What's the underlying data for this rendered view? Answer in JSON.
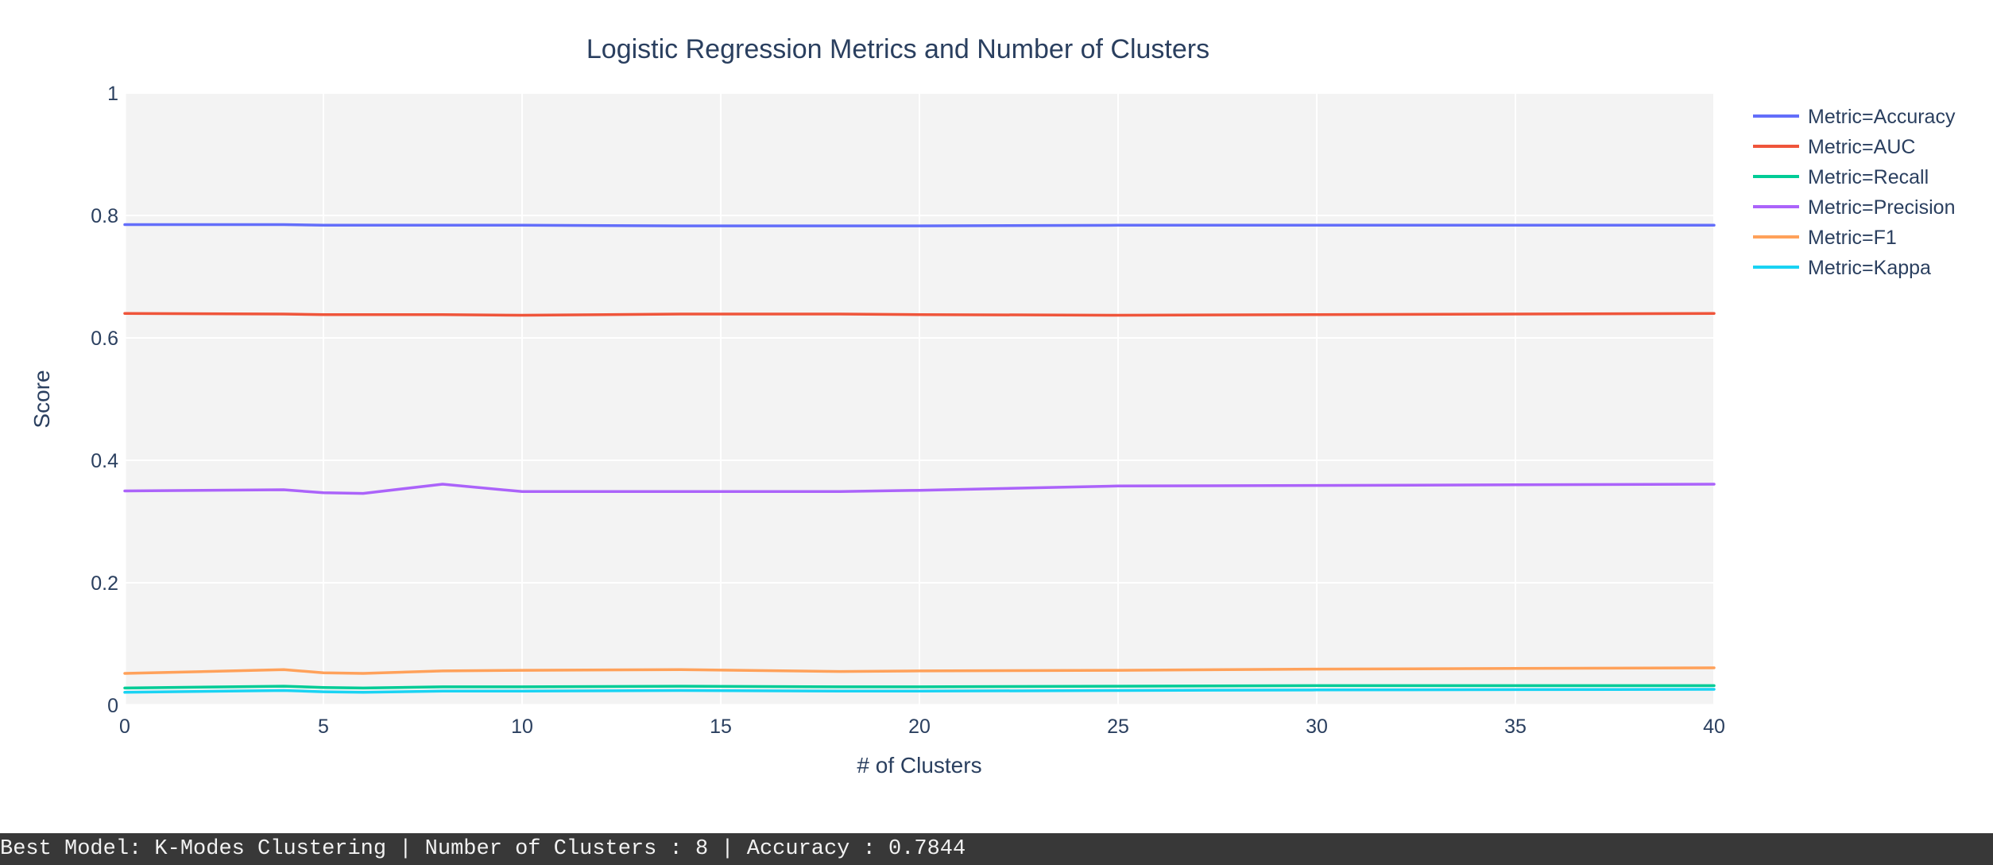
{
  "chart_data": {
    "type": "line",
    "title": "Logistic Regression Metrics and Number of Clusters",
    "xlabel": "# of Clusters",
    "ylabel": "Score",
    "xlim": [
      0,
      40
    ],
    "ylim": [
      0,
      1
    ],
    "x_ticks": [
      0,
      5,
      10,
      15,
      20,
      25,
      30,
      35,
      40
    ],
    "x_tick_labels": [
      "0",
      "5",
      "10",
      "15",
      "20",
      "25",
      "30",
      "35",
      "40"
    ],
    "y_ticks": [
      0,
      0.2,
      0.4,
      0.6,
      0.8,
      1
    ],
    "y_tick_labels": [
      "0",
      "0.2",
      "0.4",
      "0.6",
      "0.8",
      "1"
    ],
    "grid": true,
    "legend_position": "top-right",
    "x": [
      0,
      4,
      5,
      6,
      8,
      10,
      14,
      18,
      20,
      25,
      30,
      40
    ],
    "series": [
      {
        "name": "Metric=Accuracy",
        "color": "#636efa",
        "values": [
          0.785,
          0.785,
          0.784,
          0.784,
          0.784,
          0.784,
          0.783,
          0.783,
          0.783,
          0.784,
          0.784,
          0.784
        ]
      },
      {
        "name": "Metric=AUC",
        "color": "#ef553b",
        "values": [
          0.64,
          0.639,
          0.638,
          0.638,
          0.638,
          0.637,
          0.639,
          0.639,
          0.638,
          0.637,
          0.638,
          0.64
        ]
      },
      {
        "name": "Metric=Recall",
        "color": "#00cc96",
        "values": [
          0.028,
          0.031,
          0.029,
          0.028,
          0.03,
          0.03,
          0.031,
          0.03,
          0.03,
          0.031,
          0.032,
          0.032
        ]
      },
      {
        "name": "Metric=Precision",
        "color": "#ab63fa",
        "values": [
          0.35,
          0.352,
          0.347,
          0.346,
          0.361,
          0.349,
          0.349,
          0.349,
          0.351,
          0.358,
          0.359,
          0.361
        ]
      },
      {
        "name": "Metric=F1",
        "color": "#ffa15a",
        "values": [
          0.052,
          0.058,
          0.053,
          0.052,
          0.056,
          0.057,
          0.058,
          0.055,
          0.056,
          0.057,
          0.059,
          0.061
        ]
      },
      {
        "name": "Metric=Kappa",
        "color": "#19d3f3",
        "values": [
          0.021,
          0.024,
          0.022,
          0.021,
          0.023,
          0.023,
          0.024,
          0.023,
          0.023,
          0.024,
          0.025,
          0.026
        ]
      }
    ]
  },
  "status_bar": {
    "text": "Best Model: K-Modes Clustering | Number of Clusters : 8 | Accuracy : 0.7844"
  }
}
